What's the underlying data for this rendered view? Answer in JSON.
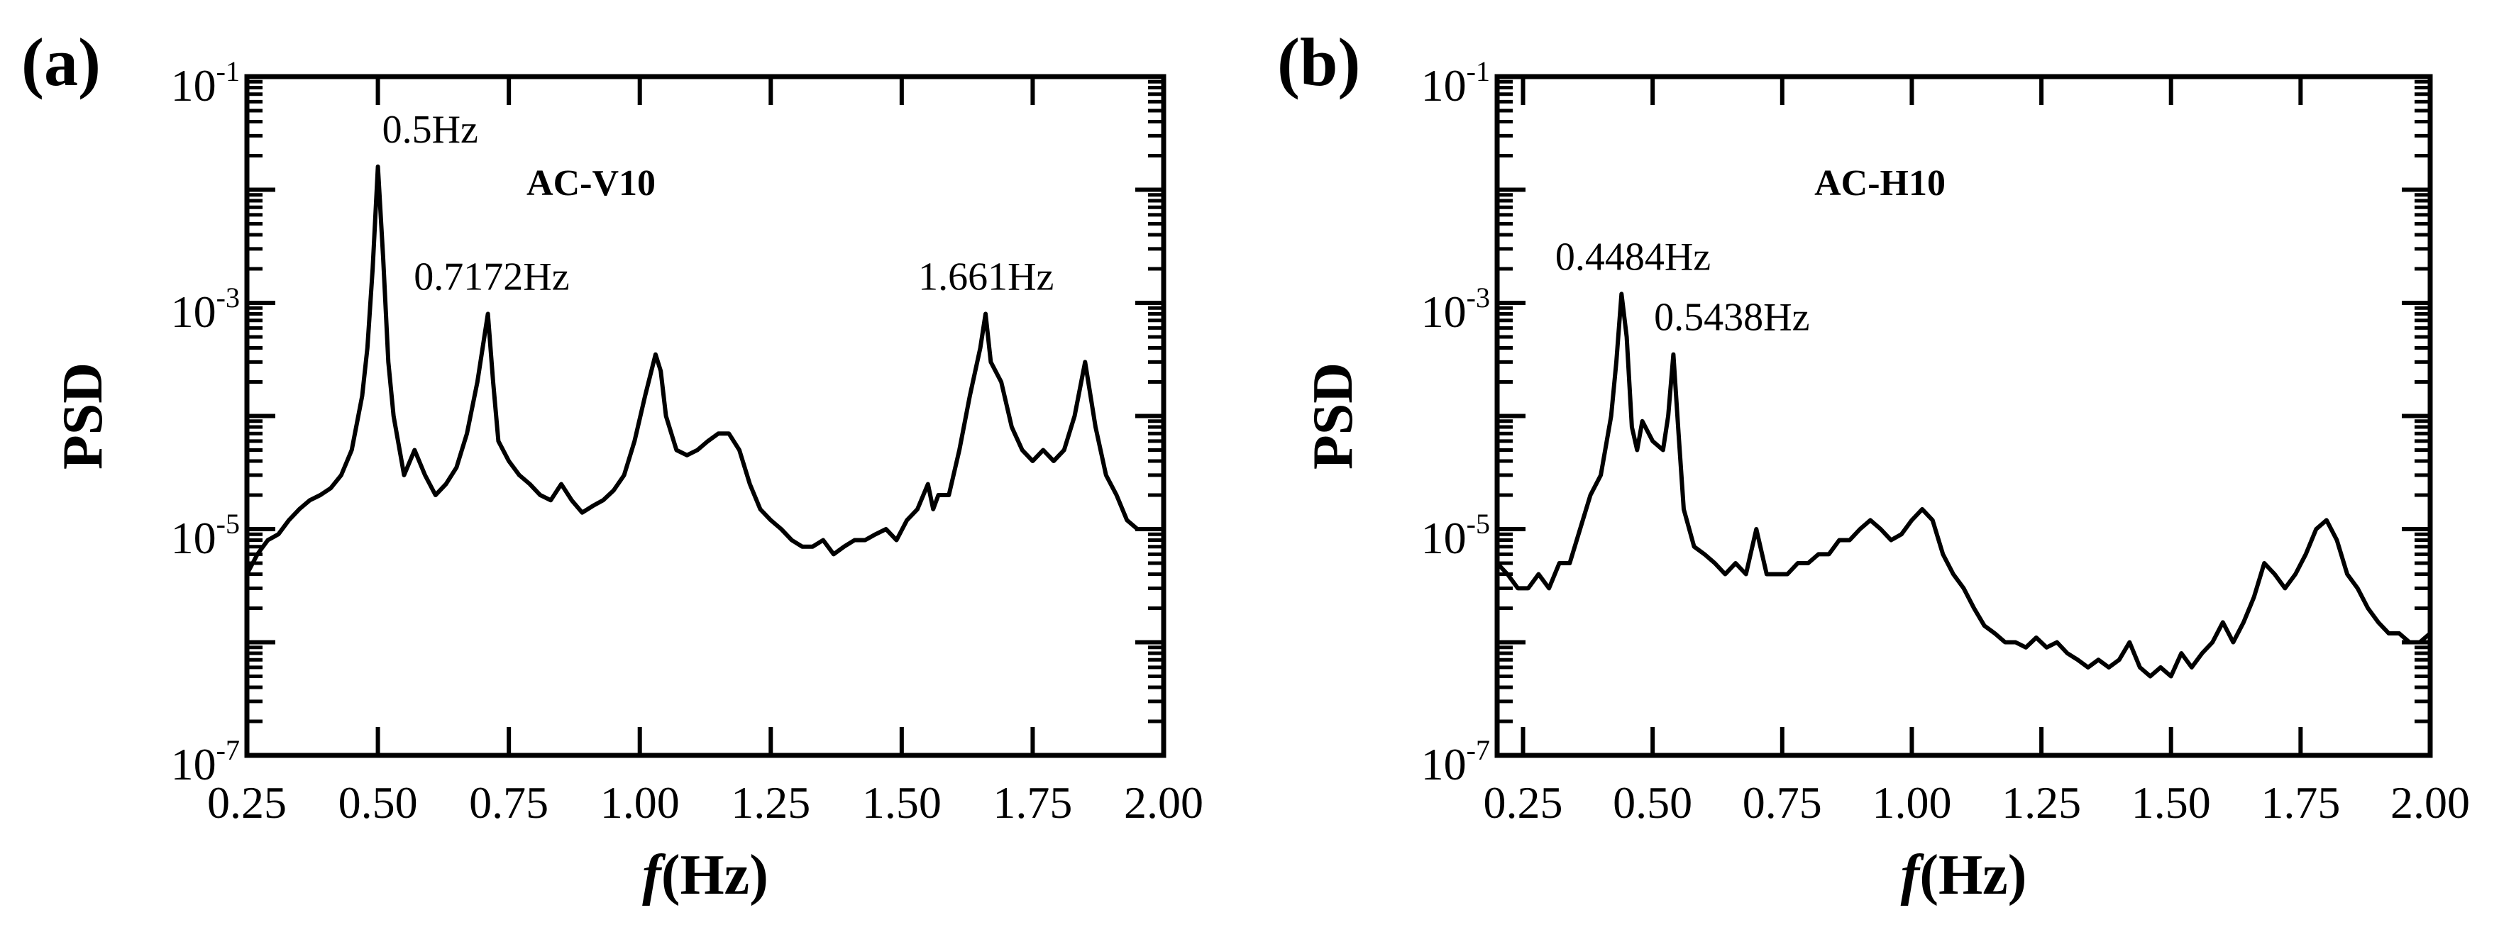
{
  "chart_data": [
    {
      "type": "line",
      "panel_label": "(a)",
      "case_label": "AC-V10",
      "xlabel_italic": "f",
      "xlabel_rest": "(Hz)",
      "ylabel": "PSD",
      "xlim": [
        0.25,
        2.0
      ],
      "ylim": [
        1e-07,
        0.1
      ],
      "yscale": "log",
      "x_ticks": [
        "0.25",
        "0.50",
        "0.75",
        "1.00",
        "1.25",
        "1.50",
        "1.75",
        "2.00"
      ],
      "y_ticks": [
        {
          "base": "10",
          "exp": "-1"
        },
        {
          "base": "10",
          "exp": "-3"
        },
        {
          "base": "10",
          "exp": "-5"
        },
        {
          "base": "10",
          "exp": "-7"
        }
      ],
      "grid": false,
      "annotations": [
        {
          "text": "0.5Hz",
          "x": 0.5,
          "y": 0.016
        },
        {
          "text": "0.7172Hz",
          "x": 0.7172,
          "y": 0.0008
        },
        {
          "text": "1.661Hz",
          "x": 1.661,
          "y": 0.0008
        }
      ],
      "series": [
        {
          "x": [
            0.25,
            0.27,
            0.29,
            0.31,
            0.33,
            0.35,
            0.37,
            0.39,
            0.41,
            0.43,
            0.45,
            0.47,
            0.48,
            0.49,
            0.5,
            0.51,
            0.52,
            0.53,
            0.55,
            0.57,
            0.59,
            0.61,
            0.63,
            0.65,
            0.67,
            0.69,
            0.7,
            0.71,
            0.72,
            0.73,
            0.75,
            0.77,
            0.79,
            0.81,
            0.83,
            0.85,
            0.87,
            0.89,
            0.91,
            0.93,
            0.95,
            0.97,
            0.99,
            1.01,
            1.03,
            1.04,
            1.05,
            1.07,
            1.09,
            1.11,
            1.13,
            1.15,
            1.17,
            1.19,
            1.21,
            1.23,
            1.25,
            1.27,
            1.29,
            1.31,
            1.33,
            1.35,
            1.37,
            1.39,
            1.41,
            1.43,
            1.45,
            1.47,
            1.49,
            1.51,
            1.53,
            1.55,
            1.56,
            1.57,
            1.59,
            1.61,
            1.63,
            1.65,
            1.66,
            1.67,
            1.69,
            1.71,
            1.73,
            1.75,
            1.77,
            1.79,
            1.81,
            1.83,
            1.85,
            1.87,
            1.89,
            1.91,
            1.93,
            1.95,
            1.97,
            1.99,
            2.0
          ],
          "y": [
            4e-06,
            6e-06,
            8e-06,
            9e-06,
            1.2e-05,
            1.5e-05,
            1.8e-05,
            2e-05,
            2.3e-05,
            3e-05,
            5e-05,
            0.00015,
            0.0004,
            0.002,
            0.016,
            0.0025,
            0.0003,
            0.0001,
            3e-05,
            5e-05,
            3e-05,
            2e-05,
            2.5e-05,
            3.5e-05,
            7e-05,
            0.0002,
            0.0004,
            0.0008,
            0.0002,
            6e-05,
            4e-05,
            3e-05,
            2.5e-05,
            2e-05,
            1.8e-05,
            2.5e-05,
            1.8e-05,
            1.4e-05,
            1.6e-05,
            1.8e-05,
            2.2e-05,
            3e-05,
            6e-05,
            0.00015,
            0.00035,
            0.00025,
            0.0001,
            5e-05,
            4.5e-05,
            5e-05,
            6e-05,
            7e-05,
            7e-05,
            5e-05,
            2.5e-05,
            1.5e-05,
            1.2e-05,
            1e-05,
            8e-06,
            7e-06,
            7e-06,
            8e-06,
            6e-06,
            7e-06,
            8e-06,
            8e-06,
            9e-06,
            1e-05,
            8e-06,
            1.2e-05,
            1.5e-05,
            2.5e-05,
            1.5e-05,
            2e-05,
            2e-05,
            5e-05,
            0.00015,
            0.0004,
            0.0008,
            0.0003,
            0.0002,
            8e-05,
            5e-05,
            4e-05,
            5e-05,
            4e-05,
            5e-05,
            0.0001,
            0.0003,
            8e-05,
            3e-05,
            2e-05,
            1.2e-05,
            1e-05,
            1e-05,
            1e-05,
            1e-05
          ]
        }
      ]
    },
    {
      "type": "line",
      "panel_label": "(b)",
      "case_label": "AC-H10",
      "xlabel_italic": "f",
      "xlabel_rest": "(Hz)",
      "ylabel": "PSD",
      "xlim": [
        0.2,
        2.0
      ],
      "ylim": [
        1e-07,
        0.1
      ],
      "yscale": "log",
      "x_ticks": [
        "0.25",
        "0.50",
        "0.75",
        "1.00",
        "1.25",
        "1.50",
        "1.75",
        "2.00"
      ],
      "y_ticks": [
        {
          "base": "10",
          "exp": "-1"
        },
        {
          "base": "10",
          "exp": "-3"
        },
        {
          "base": "10",
          "exp": "-5"
        },
        {
          "base": "10",
          "exp": "-7"
        }
      ],
      "grid": false,
      "annotations": [
        {
          "text": "0.4484Hz",
          "x": 0.4484,
          "y": 0.0012
        },
        {
          "text": "0.5438Hz",
          "x": 0.5438,
          "y": 0.00035
        }
      ],
      "series": [
        {
          "x": [
            0.2,
            0.22,
            0.24,
            0.26,
            0.28,
            0.3,
            0.32,
            0.34,
            0.36,
            0.38,
            0.4,
            0.42,
            0.43,
            0.44,
            0.45,
            0.46,
            0.47,
            0.48,
            0.5,
            0.52,
            0.53,
            0.54,
            0.55,
            0.56,
            0.58,
            0.6,
            0.62,
            0.64,
            0.66,
            0.68,
            0.7,
            0.72,
            0.74,
            0.76,
            0.78,
            0.8,
            0.82,
            0.84,
            0.86,
            0.88,
            0.9,
            0.92,
            0.94,
            0.96,
            0.98,
            1.0,
            1.02,
            1.04,
            1.06,
            1.08,
            1.1,
            1.12,
            1.14,
            1.16,
            1.18,
            1.2,
            1.22,
            1.24,
            1.26,
            1.28,
            1.3,
            1.32,
            1.34,
            1.36,
            1.38,
            1.4,
            1.42,
            1.44,
            1.46,
            1.48,
            1.5,
            1.52,
            1.54,
            1.56,
            1.58,
            1.6,
            1.62,
            1.64,
            1.66,
            1.68,
            1.7,
            1.72,
            1.74,
            1.76,
            1.78,
            1.8,
            1.82,
            1.84,
            1.86,
            1.88,
            1.9,
            1.92,
            1.94,
            1.96,
            1.98,
            2.0
          ],
          "y": [
            5e-06,
            4e-06,
            3e-06,
            3e-06,
            4e-06,
            3e-06,
            5e-06,
            5e-06,
            1e-05,
            2e-05,
            3e-05,
            0.0001,
            0.0003,
            0.0012,
            0.0005,
            8e-05,
            5e-05,
            9e-05,
            6e-05,
            5e-05,
            0.0001,
            0.00035,
            7e-05,
            1.5e-05,
            7e-06,
            6e-06,
            5e-06,
            4e-06,
            5e-06,
            4e-06,
            1e-05,
            4e-06,
            4e-06,
            4e-06,
            5e-06,
            5e-06,
            6e-06,
            6e-06,
            8e-06,
            8e-06,
            1e-05,
            1.2e-05,
            1e-05,
            8e-06,
            9e-06,
            1.2e-05,
            1.5e-05,
            1.2e-05,
            6e-06,
            4e-06,
            3e-06,
            2e-06,
            1.4e-06,
            1.2e-06,
            1e-06,
            1e-06,
            9e-07,
            1.1e-06,
            9e-07,
            1e-06,
            8e-07,
            7e-07,
            6e-07,
            7e-07,
            6e-07,
            7e-07,
            1e-06,
            6e-07,
            5e-07,
            6e-07,
            5e-07,
            8e-07,
            6e-07,
            8e-07,
            1e-06,
            1.5e-06,
            1e-06,
            1.5e-06,
            2.5e-06,
            5e-06,
            4e-06,
            3e-06,
            4e-06,
            6e-06,
            1e-05,
            1.2e-05,
            8e-06,
            4e-06,
            3e-06,
            2e-06,
            1.5e-06,
            1.2e-06,
            1.2e-06,
            1e-06,
            1e-06,
            1.2e-06
          ]
        }
      ]
    }
  ]
}
